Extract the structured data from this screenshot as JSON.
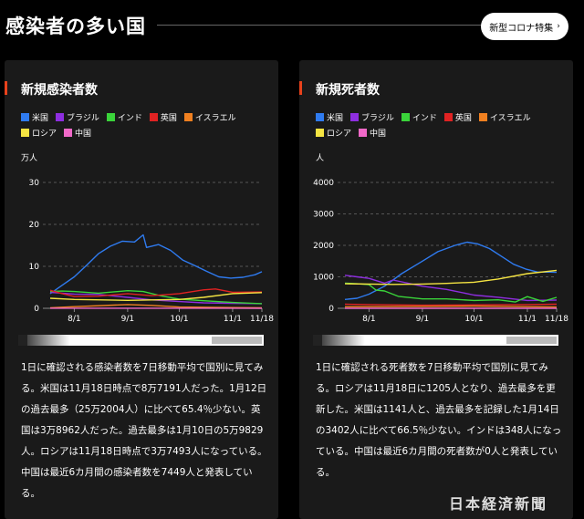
{
  "header": {
    "title": "感染者の多い国",
    "feature_button": "新型コロナ特集"
  },
  "legend_row1": [
    {
      "name": "米国",
      "color": "#2f7bf0"
    },
    {
      "name": "ブラジル",
      "color": "#8e2ee0"
    },
    {
      "name": "インド",
      "color": "#3ad43a"
    },
    {
      "name": "英国",
      "color": "#e02222"
    },
    {
      "name": "イスラエル",
      "color": "#f08020"
    }
  ],
  "legend_row2": [
    {
      "name": "ロシア",
      "color": "#f5e442"
    },
    {
      "name": "中国",
      "color": "#f069c8"
    }
  ],
  "panels": {
    "cases": {
      "title": "新規感染者数",
      "unit": "万人",
      "description": "1日に確認される感染者数を7日移動平均で国別に見てみる。米国は11月18日時点で8万7191人だった。1月12日の過去最多（25万2004人）に比べて65.4％少ない。英国は3万8962人だった。過去最多は1月10日の5万9829人。ロシアは11月18日時点で3万7493人になっている。中国は最近6カ月間の感染者数を7449人と発表している。"
    },
    "deaths": {
      "title": "新規死者数",
      "unit": "人",
      "description": "1日に確認される死者数を7日移動平均で国別に見てみる。ロシアは11月18日に1205人となり、過去最多を更新した。米国は1141人と、過去最多を記録した1月14日の3402人に比べて66.5％少ない。インドは348人になっている。中国は最近6カ月間の死者数が0人と発表している。"
    }
  },
  "chart_data": [
    {
      "type": "line",
      "unit": "万人",
      "ylim": [
        0,
        30
      ],
      "y_ticks": [
        0,
        10,
        20,
        30
      ],
      "x_range": [
        "7/18",
        "11/18"
      ],
      "x_ticks": [
        "8/1",
        "9/1",
        "10/1",
        "11/1",
        "11/18"
      ],
      "grid": true,
      "legend": "top",
      "series": [
        {
          "name": "米国",
          "color": "#2f7bf0",
          "points": [
            [
              "7/18",
              3.5
            ],
            [
              "7/25",
              5.5
            ],
            [
              "8/1",
              7.5
            ],
            [
              "8/8",
              10.2
            ],
            [
              "8/15",
              13.0
            ],
            [
              "8/22",
              14.8
            ],
            [
              "8/29",
              16.0
            ],
            [
              "9/5",
              15.8
            ],
            [
              "9/10",
              17.5
            ],
            [
              "9/12",
              14.5
            ],
            [
              "9/19",
              15.2
            ],
            [
              "9/26",
              13.8
            ],
            [
              "10/3",
              11.5
            ],
            [
              "10/10",
              10.2
            ],
            [
              "10/17",
              8.8
            ],
            [
              "10/24",
              7.5
            ],
            [
              "10/31",
              7.2
            ],
            [
              "11/7",
              7.4
            ],
            [
              "11/14",
              8.0
            ],
            [
              "11/18",
              8.72
            ]
          ]
        },
        {
          "name": "ブラジル",
          "color": "#8e2ee0",
          "points": [
            [
              "7/18",
              3.8
            ],
            [
              "7/25",
              3.6
            ],
            [
              "8/1",
              3.4
            ],
            [
              "8/15",
              3.3
            ],
            [
              "9/1",
              2.6
            ],
            [
              "9/15",
              2.0
            ],
            [
              "10/1",
              1.6
            ],
            [
              "10/15",
              1.3
            ],
            [
              "11/1",
              1.2
            ],
            [
              "11/18",
              1.1
            ]
          ]
        },
        {
          "name": "インド",
          "color": "#3ad43a",
          "points": [
            [
              "7/18",
              4.0
            ],
            [
              "7/25",
              4.1
            ],
            [
              "8/1",
              4.0
            ],
            [
              "8/15",
              3.6
            ],
            [
              "9/1",
              4.2
            ],
            [
              "9/10",
              4.0
            ],
            [
              "9/20",
              3.0
            ],
            [
              "10/1",
              2.2
            ],
            [
              "10/15",
              1.8
            ],
            [
              "11/1",
              1.4
            ],
            [
              "11/18",
              1.1
            ]
          ]
        },
        {
          "name": "英国",
          "color": "#e02222",
          "points": [
            [
              "7/18",
              4.3
            ],
            [
              "7/25",
              3.5
            ],
            [
              "8/1",
              2.8
            ],
            [
              "8/15",
              2.9
            ],
            [
              "9/1",
              3.5
            ],
            [
              "9/15",
              3.0
            ],
            [
              "10/1",
              3.5
            ],
            [
              "10/15",
              4.4
            ],
            [
              "10/22",
              4.6
            ],
            [
              "11/1",
              3.8
            ],
            [
              "11/18",
              3.9
            ]
          ]
        },
        {
          "name": "イスラエル",
          "color": "#f08020",
          "points": [
            [
              "7/18",
              0.1
            ],
            [
              "8/1",
              0.4
            ],
            [
              "9/1",
              0.9
            ],
            [
              "9/15",
              0.7
            ],
            [
              "10/1",
              0.3
            ],
            [
              "11/18",
              0.1
            ]
          ]
        },
        {
          "name": "ロシア",
          "color": "#f5e442",
          "points": [
            [
              "7/18",
              2.4
            ],
            [
              "8/1",
              2.1
            ],
            [
              "9/1",
              1.9
            ],
            [
              "9/15",
              2.0
            ],
            [
              "10/1",
              2.1
            ],
            [
              "10/15",
              2.6
            ],
            [
              "11/1",
              3.5
            ],
            [
              "11/18",
              3.75
            ]
          ]
        },
        {
          "name": "中国",
          "color": "#f069c8",
          "points": [
            [
              "7/18",
              0.02
            ],
            [
              "11/18",
              0.01
            ]
          ]
        }
      ]
    },
    {
      "type": "line",
      "unit": "人",
      "ylim": [
        0,
        4000
      ],
      "y_ticks": [
        0,
        1000,
        2000,
        3000,
        4000
      ],
      "x_range": [
        "7/18",
        "11/18"
      ],
      "x_ticks": [
        "8/1",
        "9/1",
        "10/1",
        "11/1",
        "11/18"
      ],
      "grid": true,
      "legend": "top",
      "series": [
        {
          "name": "米国",
          "color": "#2f7bf0",
          "points": [
            [
              "7/18",
              280
            ],
            [
              "7/25",
              320
            ],
            [
              "8/1",
              450
            ],
            [
              "8/10",
              700
            ],
            [
              "8/20",
              1100
            ],
            [
              "9/1",
              1500
            ],
            [
              "9/10",
              1800
            ],
            [
              "9/20",
              2000
            ],
            [
              "9/27",
              2100
            ],
            [
              "10/3",
              2050
            ],
            [
              "10/10",
              1900
            ],
            [
              "10/17",
              1650
            ],
            [
              "10/24",
              1400
            ],
            [
              "10/31",
              1250
            ],
            [
              "11/7",
              1150
            ],
            [
              "11/14",
              1150
            ],
            [
              "11/18",
              1141
            ]
          ]
        },
        {
          "name": "ブラジル",
          "color": "#8e2ee0",
          "points": [
            [
              "7/18",
              1050
            ],
            [
              "7/25",
              1000
            ],
            [
              "8/1",
              950
            ],
            [
              "8/10",
              800
            ],
            [
              "8/15",
              900
            ],
            [
              "9/1",
              700
            ],
            [
              "9/15",
              600
            ],
            [
              "10/1",
              420
            ],
            [
              "10/15",
              350
            ],
            [
              "11/1",
              250
            ],
            [
              "11/18",
              260
            ]
          ]
        },
        {
          "name": "インド",
          "color": "#3ad43a",
          "points": [
            [
              "7/18",
              800
            ],
            [
              "7/25",
              780
            ],
            [
              "8/1",
              750
            ],
            [
              "8/5",
              580
            ],
            [
              "8/10",
              550
            ],
            [
              "8/18",
              380
            ],
            [
              "9/1",
              300
            ],
            [
              "9/15",
              300
            ],
            [
              "10/1",
              250
            ],
            [
              "10/15",
              270
            ],
            [
              "10/25",
              200
            ],
            [
              "11/1",
              370
            ],
            [
              "11/10",
              220
            ],
            [
              "11/18",
              348
            ]
          ]
        },
        {
          "name": "英国",
          "color": "#e02222",
          "points": [
            [
              "7/18",
              130
            ],
            [
              "8/1",
              120
            ],
            [
              "9/1",
              100
            ],
            [
              "10/1",
              110
            ],
            [
              "11/1",
              120
            ],
            [
              "11/18",
              130
            ]
          ]
        },
        {
          "name": "イスラエル",
          "color": "#f08020",
          "points": [
            [
              "7/18",
              50
            ],
            [
              "9/1",
              60
            ],
            [
              "10/1",
              70
            ],
            [
              "11/18",
              40
            ]
          ]
        },
        {
          "name": "ロシア",
          "color": "#f5e442",
          "points": [
            [
              "7/18",
              780
            ],
            [
              "8/1",
              770
            ],
            [
              "8/15",
              760
            ],
            [
              "9/1",
              770
            ],
            [
              "9/15",
              790
            ],
            [
              "10/1",
              830
            ],
            [
              "10/15",
              930
            ],
            [
              "11/1",
              1100
            ],
            [
              "11/18",
              1205
            ]
          ]
        },
        {
          "name": "中国",
          "color": "#f069c8",
          "points": [
            [
              "7/18",
              0
            ],
            [
              "11/18",
              0
            ]
          ]
        }
      ]
    }
  ],
  "logo": "日本経済新聞"
}
